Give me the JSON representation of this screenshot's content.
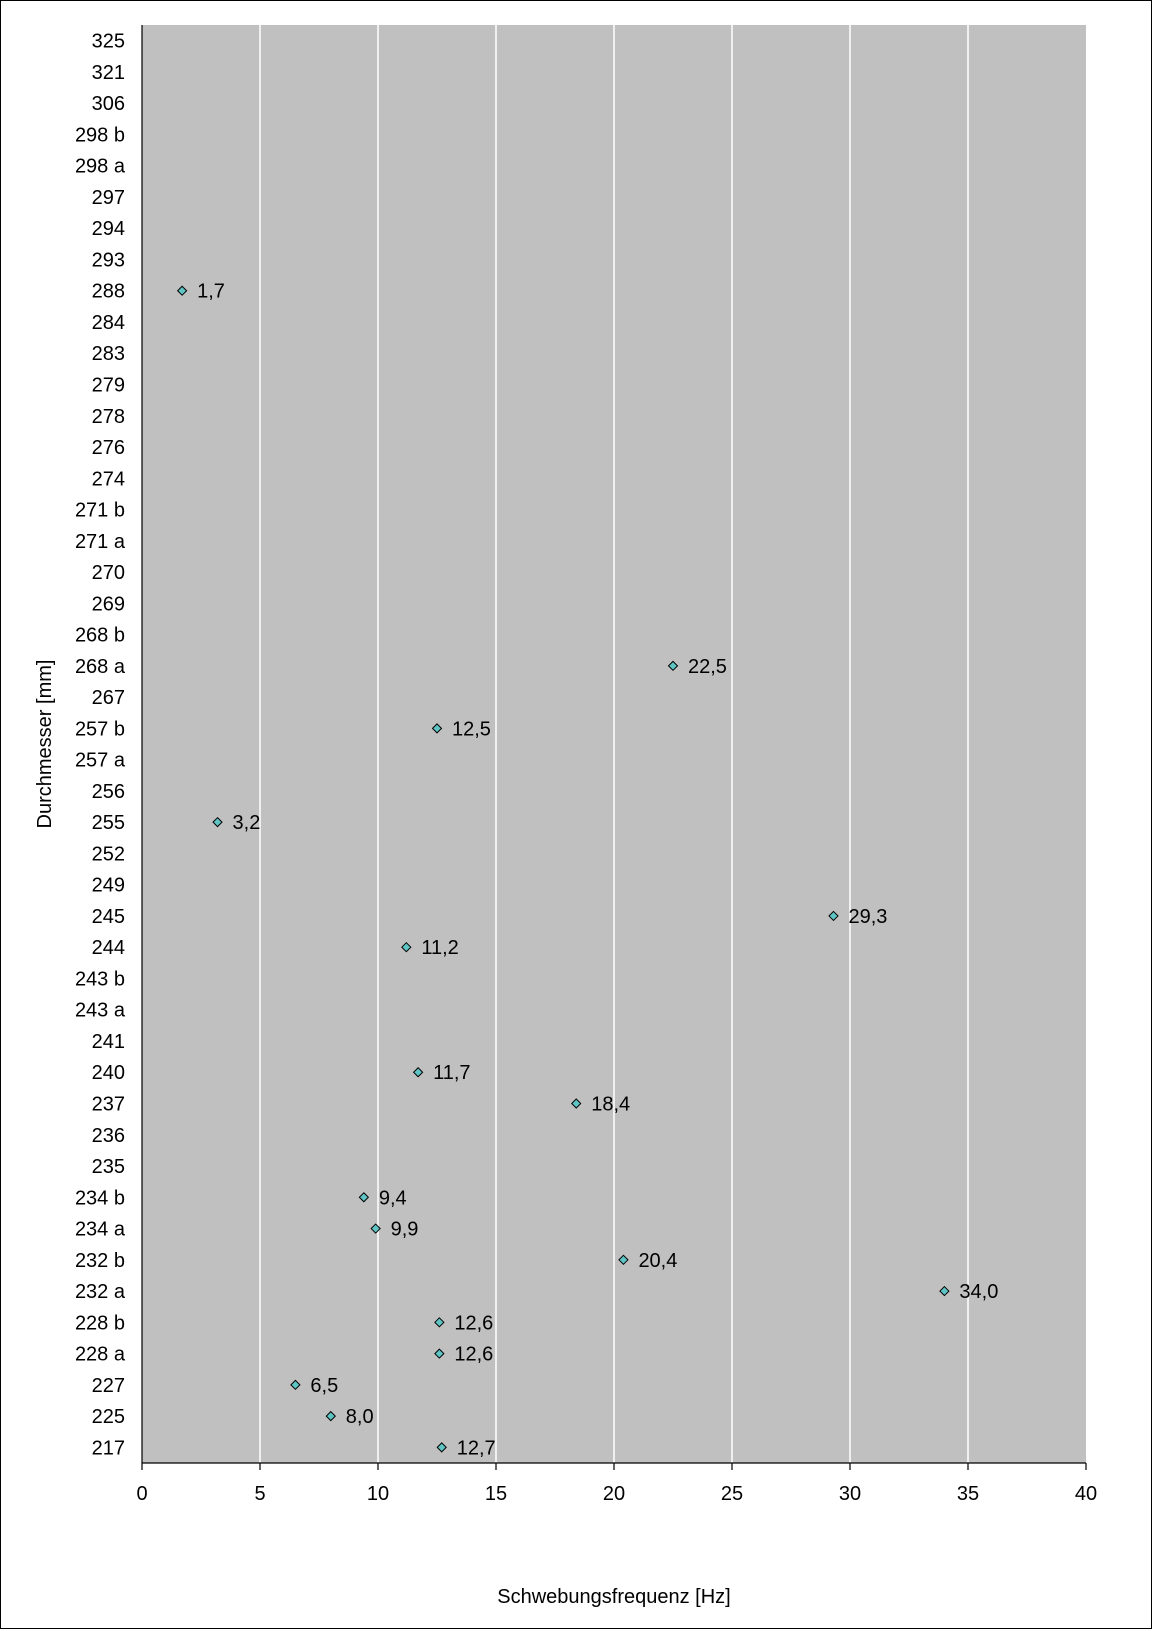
{
  "chart_data": {
    "type": "scatter",
    "xlabel": "Schwebungsfrequenz [Hz]",
    "ylabel": "Durchmesser [mm]",
    "xlim": [
      0,
      40
    ],
    "xticks": [
      0,
      5,
      10,
      15,
      20,
      25,
      30,
      35,
      40
    ],
    "grid": "vertical",
    "categories": [
      "325",
      "321",
      "306",
      "298 b",
      "298 a",
      "297",
      "294",
      "293",
      "288",
      "284",
      "283",
      "279",
      "278",
      "276",
      "274",
      "271 b",
      "271 a",
      "270",
      "269",
      "268 b",
      "268 a",
      "267",
      "257 b",
      "257 a",
      "256",
      "255",
      "252",
      "249",
      "245",
      "244",
      "243 b",
      "243 a",
      "241",
      "240",
      "237",
      "236",
      "235",
      "234 b",
      "234 a",
      "232 b",
      "232 a",
      "228 b",
      "228 a",
      "227",
      "225",
      "217"
    ],
    "points": [
      {
        "category": "288",
        "x": 1.7,
        "label": "1,7"
      },
      {
        "category": "268 a",
        "x": 22.5,
        "label": "22,5"
      },
      {
        "category": "257 b",
        "x": 12.5,
        "label": "12,5"
      },
      {
        "category": "255",
        "x": 3.2,
        "label": "3,2"
      },
      {
        "category": "245",
        "x": 29.3,
        "label": "29,3"
      },
      {
        "category": "244",
        "x": 11.2,
        "label": "11,2"
      },
      {
        "category": "240",
        "x": 11.7,
        "label": "11,7"
      },
      {
        "category": "237",
        "x": 18.4,
        "label": "18,4"
      },
      {
        "category": "234 b",
        "x": 9.4,
        "label": "9,4"
      },
      {
        "category": "234 a",
        "x": 9.9,
        "label": "9,9"
      },
      {
        "category": "232 b",
        "x": 20.4,
        "label": "20,4"
      },
      {
        "category": "232 a",
        "x": 34.0,
        "label": "34,0"
      },
      {
        "category": "228 b",
        "x": 12.6,
        "label": "12,6"
      },
      {
        "category": "228 a",
        "x": 12.6,
        "label": "12,6"
      },
      {
        "category": "227",
        "x": 6.5,
        "label": "6,5"
      },
      {
        "category": "225",
        "x": 8.0,
        "label": "8,0"
      },
      {
        "category": "217",
        "x": 12.7,
        "label": "12,7"
      }
    ],
    "colors": {
      "plot_background": "#c0c0c0",
      "gridline": "#ffffff",
      "marker_fill": "#5fc4c4",
      "marker_stroke": "#000000"
    }
  }
}
